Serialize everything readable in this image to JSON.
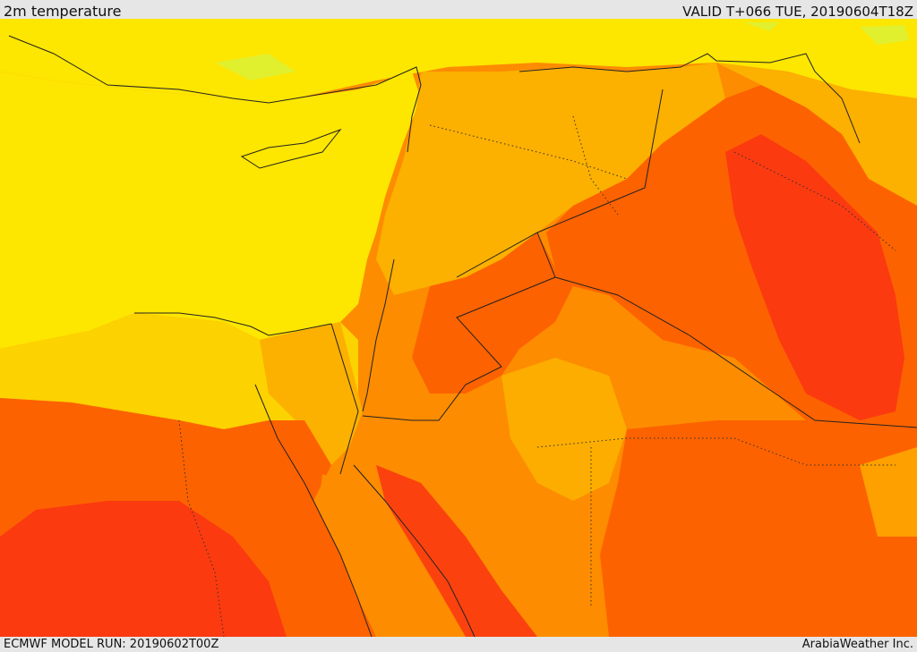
{
  "header": {
    "title": "2m temperature",
    "valid": "VALID T+066 TUE, 20190604T18Z"
  },
  "footer": {
    "model_run": "ECMWF MODEL RUN: 20190602T00Z",
    "credit": "ArabiaWeather Inc."
  },
  "palette": {
    "greenish": "#d9f23a",
    "yellow": "#fde600",
    "gold": "#fcd200",
    "amber": "#fcb000",
    "orange": "#fd8c00",
    "dark_orange": "#fd6200",
    "red_orange": "#fb3a10"
  }
}
